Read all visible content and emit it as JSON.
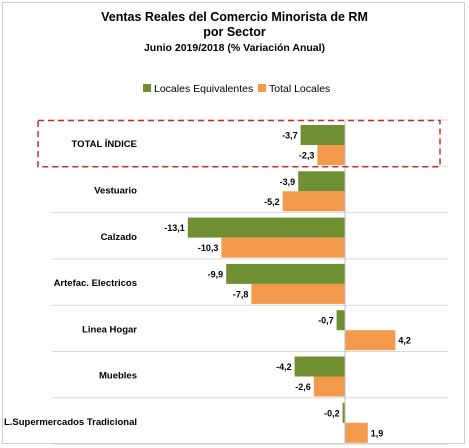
{
  "chart_data": {
    "type": "bar",
    "orientation": "horizontal",
    "title": "Ventas Reales del Comercio Minorista de RM",
    "title_line2": "por Sector",
    "subtitle": "Junio 2019/2018 (% Variación Anual)",
    "categories": [
      "TOTAL ÍNDICE",
      "Vestuario",
      "Calzado",
      "Artefac. Electricos",
      "Linea Hogar",
      "Muebles",
      "L.Supermercados Tradicional"
    ],
    "series": [
      {
        "name": "Locales Equivalentes",
        "color": "#6f8f32",
        "values": [
          -3.7,
          -3.9,
          -13.1,
          -9.9,
          -0.7,
          -4.2,
          -0.2
        ],
        "labels": [
          "-3,7",
          "-3,9",
          "-13,1",
          "-9,9",
          "-0,7",
          "-4,2",
          "-0,2"
        ]
      },
      {
        "name": "Total Locales",
        "color": "#f39a4c",
        "values": [
          -2.3,
          -5.2,
          -10.3,
          -7.8,
          4.2,
          -2.6,
          1.9
        ],
        "labels": [
          "-2,3",
          "-5,2",
          "-10,3",
          "-7,8",
          "4,2",
          "-2,6",
          "1,9"
        ]
      }
    ],
    "legend_position": "top",
    "highlighted_category": "TOTAL ÍNDICE",
    "grid": false
  }
}
